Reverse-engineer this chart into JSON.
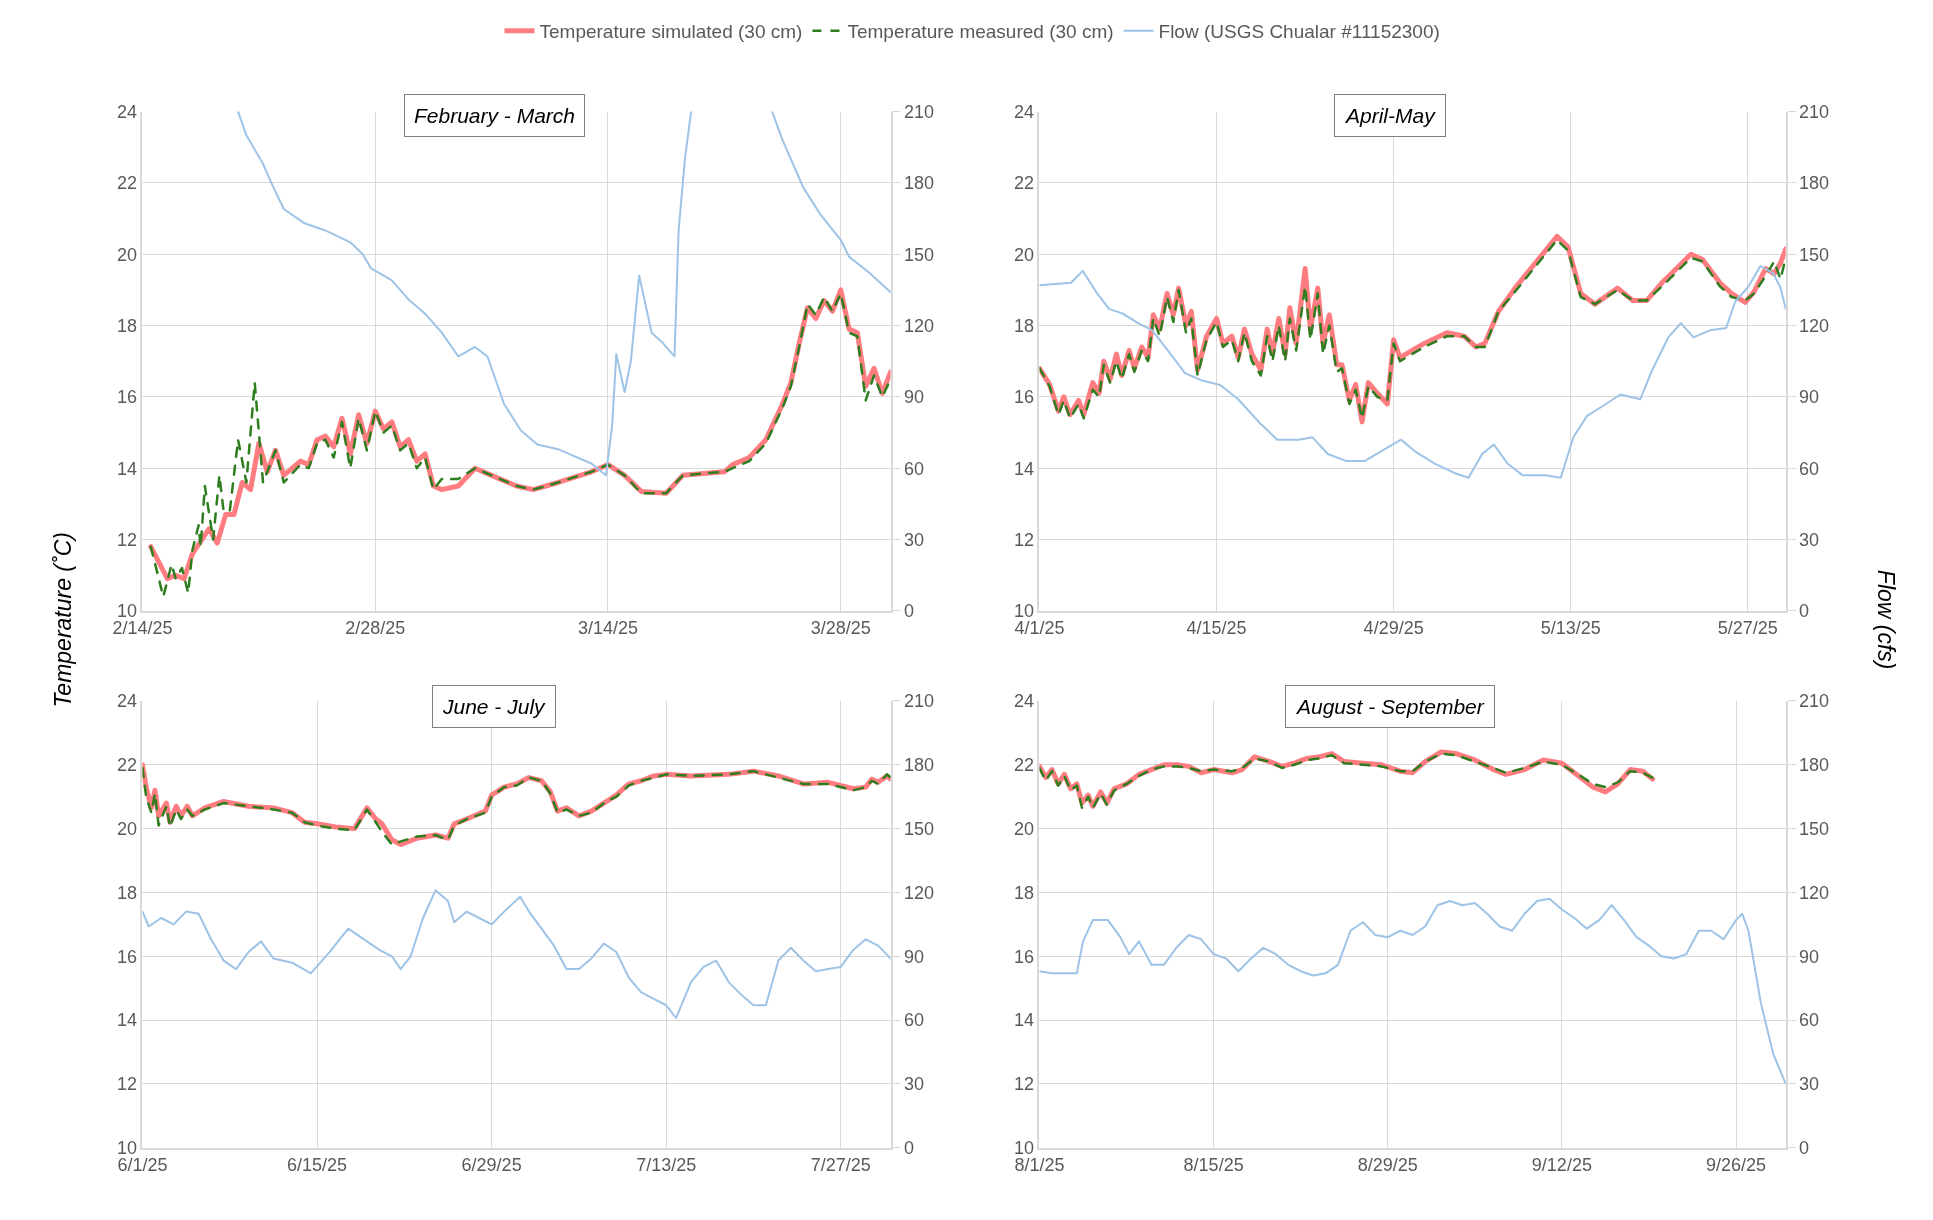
{
  "chart_data": [
    {
      "type": "line",
      "title": "February - March",
      "ylabel": "Temperature (˚C)",
      "y2label": "Flow (cfs)",
      "legend": "top",
      "grid": true,
      "xlim": [
        "--02-14",
        "--03-31"
      ],
      "xticks": [
        {
          "value": "--02-14",
          "label": "2/14/25"
        },
        {
          "value": "--02-28",
          "label": "2/28/25"
        },
        {
          "value": "--03-14",
          "label": "3/14/25"
        },
        {
          "value": "--03-28",
          "label": "3/28/25"
        }
      ],
      "ylim": [
        10,
        24
      ],
      "yticks": [
        10,
        12,
        14,
        16,
        18,
        20,
        22,
        24
      ],
      "y2lim": [
        0,
        210
      ],
      "y2ticks": [
        0,
        30,
        60,
        90,
        120,
        150,
        180,
        210
      ],
      "series": [
        {
          "name": "Temperature simulated (30 cm)",
          "color": "#ff7c80",
          "line_style": "solid",
          "x": [
            "--02-14T12:00",
            "--02-15T12:00",
            "--02-16",
            "--02-16T12:00",
            "--02-17",
            "--02-18",
            "--02-18T12:00",
            "--02-19",
            "--02-19T12:00",
            "--02-20",
            "--02-20T12:00",
            "--02-21",
            "--02-21T12:00",
            "--02-22",
            "--02-22T12:00",
            "--02-23T12:00",
            "--02-24",
            "--02-24T12:00",
            "--02-25",
            "--02-25T12:00",
            "--02-26",
            "--02-26T12:00",
            "--02-27",
            "--02-27T12:00",
            "--02-28",
            "--02-28T12:00",
            "--03-01",
            "--03-01T12:00",
            "--03-02",
            "--03-02T12:00",
            "--03-03",
            "--03-03T12:00",
            "--03-04",
            "--03-05",
            "--03-06",
            "--03-07",
            "--03-08T12:00",
            "--03-09T12:00",
            "--03-11",
            "--03-13",
            "--03-14",
            "--03-15",
            "--03-16",
            "--03-17T12:00",
            "--03-18T12:00",
            "--03-21",
            "--03-21T12:00",
            "--03-22T12:00",
            "--03-23T12:00",
            "--03-24T12:00",
            "--03-25",
            "--03-25T12:00",
            "--03-26",
            "--03-26T12:00",
            "--03-27",
            "--03-27T12:00",
            "--03-28",
            "--03-28T12:00",
            "--03-29",
            "--03-29T12:00",
            "--03-30",
            "--03-30T12:00",
            "--03-31"
          ],
          "values": [
            11.8,
            10.9,
            11.0,
            10.9,
            11.6,
            12.3,
            11.9,
            12.7,
            12.7,
            13.6,
            13.4,
            14.7,
            13.9,
            14.5,
            13.8,
            14.2,
            14.1,
            14.8,
            14.9,
            14.6,
            15.4,
            14.4,
            15.5,
            14.7,
            15.6,
            15.1,
            15.3,
            14.6,
            14.8,
            14.2,
            14.4,
            13.5,
            13.4,
            13.5,
            14.0,
            13.8,
            13.5,
            13.4,
            13.6,
            13.9,
            14.1,
            13.8,
            13.35,
            13.3,
            13.8,
            13.9,
            14.1,
            14.3,
            14.8,
            15.8,
            16.4,
            17.5,
            18.5,
            18.2,
            18.7,
            18.4,
            19.0,
            17.9,
            17.8,
            16.3,
            16.8,
            16.1,
            16.7
          ]
        },
        {
          "name": "Temperature measured (30 cm)",
          "color": "#2e7d1e",
          "line_style": "dashed",
          "x": [
            "--02-14T12:00",
            "--02-15T06:00",
            "--02-15T18:00",
            "--02-16",
            "--02-16T09:00",
            "--02-16T18:00",
            "--02-17",
            "--02-17T09:00",
            "--02-17T12:00",
            "--02-17T18:00",
            "--02-18T06:00",
            "--02-18T15:00",
            "--02-18T21:00",
            "--02-19T06:00",
            "--02-19T18:00",
            "--02-20T06:00",
            "--02-20T18:00",
            "--02-21T06:00",
            "--02-22",
            "--02-22T12:00",
            "--02-23T12:00",
            "--02-24",
            "--02-24T12:00",
            "--02-25",
            "--02-25T12:00",
            "--02-26",
            "--02-26T12:00",
            "--02-27",
            "--02-27T12:00",
            "--02-28",
            "--02-28T12:00",
            "--03-01",
            "--03-01T12:00",
            "--03-02",
            "--03-02T12:00",
            "--03-03",
            "--03-03T12:00",
            "--03-04",
            "--03-05",
            "--03-06",
            "--03-07",
            "--03-08T12:00",
            "--03-09T12:00",
            "--03-11",
            "--03-13",
            "--03-14",
            "--03-15",
            "--03-16",
            "--03-17T12:00",
            "--03-18T12:00",
            "--03-21",
            "--03-21T12:00",
            "--03-22T12:00",
            "--03-23T12:00",
            "--03-24T12:00",
            "--03-25",
            "--03-25T12:00",
            "--03-26",
            "--03-26T12:00",
            "--03-27",
            "--03-27T12:00",
            "--03-28",
            "--03-28T12:00",
            "--03-29",
            "--03-29T12:00",
            "--03-30",
            "--03-30T12:00",
            "--03-31"
          ],
          "values": [
            11.8,
            10.4,
            11.3,
            10.9,
            11.2,
            10.5,
            11.7,
            12.4,
            11.8,
            13.5,
            12.0,
            13.8,
            12.8,
            12.8,
            14.8,
            13.6,
            16.4,
            13.6,
            14.5,
            13.6,
            14.1,
            14.0,
            14.7,
            14.8,
            14.3,
            15.3,
            14.0,
            15.4,
            14.5,
            15.6,
            15.0,
            15.2,
            14.5,
            14.7,
            14.0,
            14.3,
            13.4,
            13.7,
            13.7,
            14.0,
            13.8,
            13.5,
            13.4,
            13.6,
            13.9,
            14.1,
            13.8,
            13.3,
            13.3,
            13.8,
            13.9,
            14.0,
            14.2,
            14.7,
            15.7,
            16.3,
            17.4,
            18.6,
            18.3,
            18.8,
            18.4,
            18.9,
            17.8,
            17.7,
            15.9,
            16.6,
            16.0,
            16.5
          ]
        },
        {
          "name": "Flow (USGS Chualar #11152300)",
          "color": "#9dc3e6",
          "line_style": "solid",
          "axis": "y2",
          "x": [
            "--02-19T18:00",
            "--02-20T06:00",
            "--02-21T06:00",
            "--02-21T18:00",
            "--02-22T12:00",
            "--02-23T18:00",
            "--02-25",
            "--02-26T12:00",
            "--02-27T06:00",
            "--02-27T18:00",
            "--03-01",
            "--03-02",
            "--03-03",
            "--03-04",
            "--03-05",
            "--03-06",
            "--03-06T18:00",
            "--03-07T18:00",
            "--03-08T18:00",
            "--03-09T18:00",
            "--03-11",
            "--03-12",
            "--03-13",
            "--03-13T21:00",
            "--03-14T06:00",
            "--03-14T12:00",
            "--03-15",
            "--03-15T09:00",
            "--03-15T21:00",
            "--03-16T15:00",
            "--03-17T06:00",
            "--03-18",
            "--03-18T06:00",
            "--03-18T15:00",
            "--03-19",
            "--03-21",
            "--03-23T21:00",
            "--03-24T12:00",
            "--03-25T18:00",
            "--03-26T18:00",
            "--03-28",
            "--03-28T12:00",
            "--03-29T18:00",
            "--03-31"
          ],
          "values": [
            210,
            200,
            188,
            180,
            169,
            163,
            160,
            155,
            150,
            144,
            139,
            131,
            125,
            117,
            107,
            111,
            107,
            87,
            76,
            70,
            68,
            65,
            62,
            57,
            78,
            108,
            92,
            105,
            141,
            117,
            113,
            107,
            160,
            190,
            210,
            null,
            210,
            198,
            178,
            167,
            156,
            149,
            142,
            134
          ]
        }
      ]
    },
    {
      "type": "line",
      "title": "April-May",
      "grid": true,
      "xlim": [
        "--04-01",
        "--05-30"
      ],
      "xticks": [
        {
          "value": "--04-01",
          "label": "4/1/25"
        },
        {
          "value": "--04-15",
          "label": "4/15/25"
        },
        {
          "value": "--04-29",
          "label": "4/29/25"
        },
        {
          "value": "--05-13",
          "label": "5/13/25"
        },
        {
          "value": "--05-27",
          "label": "5/27/25"
        }
      ],
      "ylim": [
        10,
        24
      ],
      "yticks": [
        10,
        12,
        14,
        16,
        18,
        20,
        22,
        24
      ],
      "y2lim": [
        0,
        210
      ],
      "y2ticks": [
        0,
        30,
        60,
        90,
        120,
        150,
        180,
        210
      ],
      "series": [
        {
          "color": "#ff7c80",
          "line_style": "solid",
          "x": [
            "--04-01",
            "--04-01T19:00",
            "--04-02T12:00",
            "--04-02T22:00",
            "--04-03T10:00",
            "--04-04T02:00",
            "--04-04T12:00",
            "--04-05T05:00",
            "--04-05T17:00",
            "--04-06T02:00",
            "--04-06T14:00",
            "--04-07T02:00",
            "--04-07T12:00",
            "--04-08T02:00",
            "--04-08T12:00",
            "--04-09T02:00",
            "--04-09T14:00",
            "--04-10",
            "--04-10T12:00",
            "--04-11T02:00",
            "--04-11T14:00",
            "--04-12",
            "--04-12T14:00",
            "--04-13",
            "--04-13T12:00",
            "--04-14T05:00",
            "--04-15",
            "--04-15T12:00",
            "--04-16T05:00",
            "--04-16T17:00",
            "--04-17T05:00",
            "--04-17T19:00",
            "--04-18T12:00",
            "--04-19",
            "--04-19T10:00",
            "--04-19T22:00",
            "--04-20T10:00",
            "--04-20T19:00",
            "--04-21T07:00",
            "--04-22",
            "--04-22T10:00",
            "--04-23",
            "--04-23T10:00",
            "--04-23T22:00",
            "--04-24T12:00",
            "--04-24T22:00",
            "--04-25T12:00",
            "--04-26",
            "--04-26T12:00",
            "--04-27",
            "--04-27T17:00",
            "--04-28T12:00",
            "--04-29",
            "--04-29T12:00",
            "--05-01T10:00",
            "--05-03T05:00",
            "--05-04T14:00",
            "--05-05T12:00",
            "--05-06T05:00",
            "--05-07T07:00",
            "--05-08T17:00",
            "--05-10T02:00",
            "--05-11T22:00",
            "--05-12T19:00",
            "--05-13T19:00",
            "--05-14T22:00",
            "--05-16T17:00",
            "--05-17T22:00",
            "--05-19",
            "--05-20T05:00",
            "--05-21T02:00",
            "--05-22T12:00",
            "--05-23T10:00",
            "--05-24T19:00",
            "--05-25T17:00",
            "--05-26T19:00",
            "--05-27T12:00",
            "--05-28T10:00",
            "--05-29T02:00",
            "--05-29T14:00",
            "--05-30"
          ],
          "values": [
            16.8,
            16.35,
            15.6,
            16.0,
            15.5,
            15.9,
            15.5,
            16.4,
            16.1,
            17.0,
            16.5,
            17.2,
            16.6,
            17.3,
            16.8,
            17.4,
            17.1,
            18.3,
            17.9,
            18.9,
            18.3,
            19.05,
            18.0,
            18.4,
            16.75,
            17.7,
            18.2,
            17.5,
            17.7,
            17.1,
            17.9,
            17.2,
            16.75,
            17.9,
            17.2,
            18.2,
            17.2,
            18.5,
            17.5,
            19.6,
            17.9,
            19.05,
            17.5,
            18.3,
            16.9,
            16.9,
            15.9,
            16.35,
            15.3,
            16.4,
            16.1,
            15.8,
            17.6,
            17.1,
            17.5,
            17.8,
            17.7,
            17.4,
            17.5,
            18.4,
            19.1,
            19.7,
            20.5,
            20.2,
            18.9,
            18.6,
            19.05,
            18.7,
            18.7,
            19.2,
            19.5,
            20.0,
            19.85,
            19.2,
            18.9,
            18.65,
            18.95,
            19.6,
            19.45,
            19.75,
            20.15
          ]
        },
        {
          "color": "#2e7d1e",
          "line_style": "dashed",
          "x": [
            "--04-01",
            "--04-01T19:00",
            "--04-02T12:00",
            "--04-02T22:00",
            "--04-03T10:00",
            "--04-04T02:00",
            "--04-04T12:00",
            "--04-05T05:00",
            "--04-05T17:00",
            "--04-06T02:00",
            "--04-06T14:00",
            "--04-07T02:00",
            "--04-07T12:00",
            "--04-08T02:00",
            "--04-08T12:00",
            "--04-09T02:00",
            "--04-09T14:00",
            "--04-10",
            "--04-10T12:00",
            "--04-11T02:00",
            "--04-11T14:00",
            "--04-12",
            "--04-12T14:00",
            "--04-13",
            "--04-13T12:00",
            "--04-14T05:00",
            "--04-15",
            "--04-15T12:00",
            "--04-16T05:00",
            "--04-16T17:00",
            "--04-17T05:00",
            "--04-17T19:00",
            "--04-18T12:00",
            "--04-19",
            "--04-19T10:00",
            "--04-19T22:00",
            "--04-20T10:00",
            "--04-20T19:00",
            "--04-21T07:00",
            "--04-22",
            "--04-22T10:00",
            "--04-23",
            "--04-23T10:00",
            "--04-23T22:00",
            "--04-24T12:00",
            "--04-24T22:00",
            "--04-25T12:00",
            "--04-26",
            "--04-26T12:00",
            "--04-27",
            "--04-27T17:00",
            "--04-28T12:00",
            "--04-29",
            "--04-29T12:00",
            "--05-01T10:00",
            "--05-03T05:00",
            "--05-04T14:00",
            "--05-05T12:00",
            "--05-06T05:00",
            "--05-07T07:00",
            "--05-08T17:00",
            "--05-10T02:00",
            "--05-11T22:00",
            "--05-12T19:00",
            "--05-13T19:00",
            "--05-14T22:00",
            "--05-16T17:00",
            "--05-17T22:00",
            "--05-19",
            "--05-20T05:00",
            "--05-21T02:00",
            "--05-22T12:00",
            "--05-23T10:00",
            "--05-24T19:00",
            "--05-25T17:00",
            "--05-26T19:00",
            "--05-27T12:00",
            "--05-28T10:00",
            "--05-29T02:00",
            "--05-29T14:00",
            "--05-30"
          ],
          "values": [
            16.8,
            16.3,
            15.5,
            15.9,
            15.4,
            15.8,
            15.4,
            16.2,
            16.0,
            16.9,
            16.4,
            17.0,
            16.5,
            17.2,
            16.7,
            17.3,
            17.0,
            18.2,
            17.7,
            18.8,
            18.1,
            19.0,
            17.8,
            18.2,
            16.6,
            17.6,
            18.1,
            17.4,
            17.6,
            17.0,
            17.8,
            17.0,
            16.6,
            17.7,
            17.0,
            18.0,
            17.0,
            18.2,
            17.3,
            19.1,
            17.6,
            18.9,
            17.2,
            18.0,
            16.7,
            16.8,
            15.8,
            16.2,
            15.4,
            16.3,
            16.0,
            15.9,
            17.5,
            17.0,
            17.4,
            17.7,
            17.7,
            17.4,
            17.4,
            18.4,
            19.0,
            19.6,
            20.4,
            20.1,
            18.8,
            18.6,
            19.0,
            18.7,
            18.7,
            19.1,
            19.4,
            19.9,
            19.8,
            19.1,
            18.8,
            18.7,
            18.9,
            19.4,
            19.8,
            19.3,
            19.9
          ]
        },
        {
          "color": "#9dc3e6",
          "line_style": "solid",
          "axis": "y2",
          "x": [
            "--04-01",
            "--04-03T12:00",
            "--04-04T10:00",
            "--04-05T12:00",
            "--04-06T12:00",
            "--04-07T14:00",
            "--04-08T19:00",
            "--04-09T22:00",
            "--04-11T02:00",
            "--04-12T12:00",
            "--04-13T19:00",
            "--04-15T07:00",
            "--04-16T17:00",
            "--04-18T10:00",
            "--04-19T19:00",
            "--04-21T12:00",
            "--04-22T14:00",
            "--04-23T19:00",
            "--04-25T07:00",
            "--04-26T17:00",
            "--04-28T07:00",
            "--04-29T14:00",
            "--04-30T17:00",
            "--05-02T05:00",
            "--05-03T19:00",
            "--05-04T22:00",
            "--05-06",
            "--05-06T22:00",
            "--05-08",
            "--05-09T05:00",
            "--05-11",
            "--05-12T05:00",
            "--05-13T05:00",
            "--05-14T07:00",
            "--05-15T19:00",
            "--05-16T22:00",
            "--05-18T12:00",
            "--05-19T10:00",
            "--05-20T17:00",
            "--05-21T17:00",
            "--05-22T17:00",
            "--05-24",
            "--05-25T07:00",
            "--05-26",
            "--05-27",
            "--05-28",
            "--05-29",
            "--05-29T14:00",
            "--05-30"
          ],
          "values": [
            137,
            138,
            143,
            134,
            127,
            125,
            121,
            118,
            110,
            100,
            97,
            95,
            89,
            79,
            72,
            72,
            73,
            66,
            63,
            63,
            68,
            72,
            67,
            62,
            58,
            56,
            66,
            70,
            62,
            57,
            57,
            56,
            73,
            82,
            87,
            91,
            89,
            101,
            115,
            121,
            115,
            118,
            119,
            130,
            136,
            145,
            142,
            136,
            127
          ]
        }
      ]
    },
    {
      "type": "line",
      "title": "June - July",
      "grid": true,
      "xlim": [
        "--06-01",
        "--07-31"
      ],
      "xticks": [
        {
          "value": "--06-01",
          "label": "6/1/25"
        },
        {
          "value": "--06-15",
          "label": "6/15/25"
        },
        {
          "value": "--06-29",
          "label": "6/29/25"
        },
        {
          "value": "--07-13",
          "label": "7/13/25"
        },
        {
          "value": "--07-27",
          "label": "7/27/25"
        }
      ],
      "ylim": [
        10,
        24
      ],
      "yticks": [
        10,
        12,
        14,
        16,
        18,
        20,
        22,
        24
      ],
      "y2lim": [
        0,
        210
      ],
      "y2ticks": [
        0,
        30,
        60,
        90,
        120,
        150,
        180,
        210
      ],
      "series": [
        {
          "color": "#ff7c80",
          "line_style": "solid",
          "x": [
            "--06-01",
            "--06-01T07:00",
            "--06-01T17:00",
            "--06-02",
            "--06-02T07:00",
            "--06-02T22:00",
            "--06-03T05:00",
            "--06-03T17:00",
            "--06-04T02:00",
            "--06-04T14:00",
            "--06-05",
            "--06-06",
            "--06-07T12:00",
            "--06-09T12:00",
            "--06-11T12:00",
            "--06-13",
            "--06-14",
            "--06-15",
            "--06-16T12:00",
            "--06-18",
            "--06-19",
            "--06-19T17:00",
            "--06-20T05:00",
            "--06-21",
            "--06-21T17:00",
            "--06-23",
            "--06-24T12:00",
            "--06-25T12:00",
            "--06-26",
            "--06-27",
            "--06-28T12:00",
            "--06-29",
            "--06-30",
            "--07-01",
            "--07-02",
            "--07-03",
            "--07-03T17:00",
            "--07-04T07:00",
            "--07-05",
            "--07-06",
            "--07-07",
            "--07-08",
            "--07-09",
            "--07-10",
            "--07-11",
            "--07-12",
            "--07-13",
            "--07-15",
            "--07-18",
            "--07-20",
            "--07-22",
            "--07-24",
            "--07-26",
            "--07-28",
            "--07-29",
            "--07-29T12:00",
            "--07-30",
            "--07-30T17:00",
            "--07-31"
          ],
          "values": [
            22.0,
            21.3,
            20.65,
            21.2,
            20.4,
            20.8,
            20.2,
            20.7,
            20.4,
            20.7,
            20.4,
            20.65,
            20.85,
            20.7,
            20.65,
            20.5,
            20.2,
            20.15,
            20.05,
            20.0,
            20.65,
            20.3,
            20.15,
            19.65,
            19.5,
            19.7,
            19.8,
            19.7,
            20.15,
            20.3,
            20.55,
            21.05,
            21.3,
            21.4,
            21.6,
            21.5,
            21.15,
            20.55,
            20.65,
            20.4,
            20.55,
            20.8,
            21.05,
            21.4,
            21.5,
            21.65,
            21.7,
            21.65,
            21.7,
            21.8,
            21.65,
            21.4,
            21.45,
            21.25,
            21.3,
            21.55,
            21.45,
            21.65,
            21.55
          ]
        },
        {
          "color": "#2e7d1e",
          "line_style": "dashed",
          "x": [
            "--06-01",
            "--06-01T07:00",
            "--06-01T17:00",
            "--06-02",
            "--06-02T07:00",
            "--06-02T22:00",
            "--06-03T05:00",
            "--06-03T17:00",
            "--06-04T02:00",
            "--06-04T14:00",
            "--06-05",
            "--06-06",
            "--06-07T12:00",
            "--06-09T12:00",
            "--06-11T12:00",
            "--06-13",
            "--06-14",
            "--06-15",
            "--06-16T12:00",
            "--06-18",
            "--06-19",
            "--06-19T17:00",
            "--06-20T05:00",
            "--06-21",
            "--06-21T17:00",
            "--06-23",
            "--06-24T12:00",
            "--06-25T12:00",
            "--06-26",
            "--06-27",
            "--06-28T12:00",
            "--06-29",
            "--06-30",
            "--07-01",
            "--07-02",
            "--07-03",
            "--07-03T17:00",
            "--07-04T07:00",
            "--07-05",
            "--07-06",
            "--07-07",
            "--07-08",
            "--07-09",
            "--07-10",
            "--07-11",
            "--07-12",
            "--07-13",
            "--07-15",
            "--07-18",
            "--07-20",
            "--07-22",
            "--07-24",
            "--07-26",
            "--07-28",
            "--07-29",
            "--07-29T12:00",
            "--07-30",
            "--07-30T17:00",
            "--07-31"
          ],
          "values": [
            21.9,
            21.0,
            20.5,
            21.1,
            20.1,
            20.7,
            20.05,
            20.6,
            20.3,
            20.6,
            20.4,
            20.6,
            20.8,
            20.7,
            20.6,
            20.5,
            20.2,
            20.1,
            20.0,
            19.95,
            20.6,
            20.2,
            19.9,
            19.5,
            19.6,
            19.75,
            19.8,
            19.65,
            20.1,
            20.3,
            20.5,
            21.0,
            21.3,
            21.35,
            21.6,
            21.5,
            21.1,
            20.5,
            20.6,
            20.4,
            20.5,
            20.8,
            21.0,
            21.35,
            21.5,
            21.6,
            21.7,
            21.65,
            21.7,
            21.8,
            21.6,
            21.4,
            21.4,
            21.2,
            21.3,
            21.5,
            21.4,
            21.7,
            21.6
          ]
        },
        {
          "color": "#9dc3e6",
          "line_style": "solid",
          "axis": "y2",
          "x": [
            "--06-01",
            "--06-01T12:00",
            "--06-02T12:00",
            "--06-03T12:00",
            "--06-04T12:00",
            "--06-05T12:00",
            "--06-06T12:00",
            "--06-07T12:00",
            "--06-08T12:00",
            "--06-09T12:00",
            "--06-10T12:00",
            "--06-11T12:00",
            "--06-13",
            "--06-14T12:00",
            "--06-16",
            "--06-17T12:00",
            "--06-18T12:00",
            "--06-20",
            "--06-21",
            "--06-21T17:00",
            "--06-22T12:00",
            "--06-23T12:00",
            "--06-24T12:00",
            "--06-25T12:00",
            "--06-26",
            "--06-27",
            "--06-28",
            "--06-29",
            "--06-30",
            "--07-01T07:00",
            "--07-02",
            "--07-03",
            "--07-04",
            "--07-05",
            "--07-06",
            "--07-07",
            "--07-08",
            "--07-09",
            "--07-10",
            "--07-11",
            "--07-12",
            "--07-13",
            "--07-13T19:00",
            "--07-15",
            "--07-16",
            "--07-17",
            "--07-18",
            "--07-19",
            "--07-20",
            "--07-21",
            "--07-22",
            "--07-23",
            "--07-24",
            "--07-25",
            "--07-26",
            "--07-27",
            "--07-28",
            "--07-29",
            "--07-30",
            "--07-31"
          ],
          "values": [
            111,
            104,
            108,
            105,
            111,
            110,
            98,
            88,
            84,
            92,
            97,
            89,
            87,
            82,
            92,
            103,
            99,
            93,
            90,
            84,
            90,
            108,
            121,
            116,
            106,
            111,
            108,
            105,
            111,
            118,
            111,
            103,
            95,
            84,
            84,
            89,
            96,
            92,
            80,
            73,
            70,
            67,
            61,
            78,
            85,
            88,
            78,
            72,
            67,
            67,
            88,
            94,
            88,
            83,
            84,
            85,
            93,
            98,
            95,
            89
          ]
        }
      ]
    },
    {
      "type": "line",
      "title": "August - September",
      "grid": true,
      "xlim": [
        "--08-01",
        "--09-30"
      ],
      "xticks": [
        {
          "value": "--08-01",
          "label": "8/1/25"
        },
        {
          "value": "--08-15",
          "label": "8/15/25"
        },
        {
          "value": "--08-29",
          "label": "8/29/25"
        },
        {
          "value": "--09-12",
          "label": "9/12/25"
        },
        {
          "value": "--09-26",
          "label": "9/26/25"
        }
      ],
      "ylim": [
        10,
        24
      ],
      "yticks": [
        10,
        12,
        14,
        16,
        18,
        20,
        22,
        24
      ],
      "y2lim": [
        0,
        210
      ],
      "y2ticks": [
        0,
        30,
        60,
        90,
        120,
        150,
        180,
        210
      ],
      "series": [
        {
          "color": "#ff7c80",
          "line_style": "solid",
          "x": [
            "--08-01",
            "--08-01T12:00",
            "--08-02",
            "--08-02T12:00",
            "--08-03",
            "--08-03T12:00",
            "--08-04",
            "--08-04T10:00",
            "--08-04T22:00",
            "--08-05T07:00",
            "--08-05T22:00",
            "--08-06T10:00",
            "--08-07",
            "--08-08",
            "--08-09",
            "--08-10",
            "--08-11",
            "--08-12",
            "--08-13",
            "--08-14",
            "--08-15",
            "--08-16T12:00",
            "--08-17T07:00",
            "--08-18T07:00",
            "--08-19T12:00",
            "--08-20T12:00",
            "--08-21T12:00",
            "--08-22T12:00",
            "--08-23T12:00",
            "--08-24T12:00",
            "--08-25T12:00",
            "--08-27",
            "--08-28T12:00",
            "--08-30",
            "--08-31",
            "--09-01",
            "--09-02T07:00",
            "--09-03T12:00",
            "--09-05",
            "--09-06T12:00",
            "--09-07T12:00",
            "--09-09",
            "--09-10T12:00",
            "--09-12",
            "--09-13T12:00",
            "--09-14T12:00",
            "--09-15T12:00",
            "--09-16T12:00",
            "--09-17T12:00",
            "--09-18T12:00",
            "--09-19T07:00"
          ],
          "values": [
            21.95,
            21.6,
            21.85,
            21.4,
            21.7,
            21.25,
            21.4,
            20.8,
            21.05,
            20.7,
            21.15,
            20.8,
            21.25,
            21.4,
            21.7,
            21.85,
            22.0,
            22.0,
            21.95,
            21.75,
            21.85,
            21.75,
            21.85,
            22.25,
            22.1,
            21.95,
            22.05,
            22.2,
            22.25,
            22.35,
            22.1,
            22.05,
            22.0,
            21.8,
            21.75,
            22.1,
            22.4,
            22.35,
            22.15,
            21.85,
            21.7,
            21.85,
            22.15,
            22.05,
            21.6,
            21.3,
            21.15,
            21.4,
            21.85,
            21.8,
            21.55
          ]
        },
        {
          "color": "#2e7d1e",
          "line_style": "dashed",
          "x": [
            "--08-01",
            "--08-01T12:00",
            "--08-02",
            "--08-02T12:00",
            "--08-03",
            "--08-03T12:00",
            "--08-04",
            "--08-04T10:00",
            "--08-04T22:00",
            "--08-05T07:00",
            "--08-05T22:00",
            "--08-06T10:00",
            "--08-07",
            "--08-08",
            "--08-09",
            "--08-10",
            "--08-11",
            "--08-12",
            "--08-13",
            "--08-14",
            "--08-15",
            "--08-16T12:00",
            "--08-17T07:00",
            "--08-18T07:00",
            "--08-19T12:00",
            "--08-20T12:00",
            "--08-21T12:00",
            "--08-22T12:00",
            "--08-23T12:00",
            "--08-24T12:00",
            "--08-25T12:00",
            "--08-27",
            "--08-28T12:00",
            "--08-30",
            "--08-31",
            "--09-01",
            "--09-02T07:00",
            "--09-03T12:00",
            "--09-05",
            "--09-06T12:00",
            "--09-07T12:00",
            "--09-09",
            "--09-10T12:00",
            "--09-12",
            "--09-13T12:00",
            "--09-14T12:00",
            "--09-15T12:00",
            "--09-16T12:00",
            "--09-17T12:00",
            "--09-18T12:00",
            "--09-19T07:00"
          ],
          "values": [
            21.9,
            21.5,
            21.8,
            21.35,
            21.65,
            21.2,
            21.35,
            20.65,
            21.0,
            20.65,
            21.1,
            20.75,
            21.2,
            21.4,
            21.65,
            21.85,
            21.95,
            21.95,
            21.9,
            21.8,
            21.85,
            21.8,
            21.9,
            22.2,
            22.1,
            21.9,
            22.0,
            22.15,
            22.2,
            22.3,
            22.05,
            22.0,
            21.95,
            21.8,
            21.8,
            22.1,
            22.35,
            22.3,
            22.1,
            21.9,
            21.75,
            21.9,
            22.1,
            22.0,
            21.65,
            21.4,
            21.3,
            21.45,
            21.8,
            21.75,
            21.6
          ]
        },
        {
          "color": "#9dc3e6",
          "line_style": "solid",
          "axis": "y2",
          "x": [
            "--08-01",
            "--08-02",
            "--08-03",
            "--08-04",
            "--08-04T12:00",
            "--08-05T07:00",
            "--08-06T12:00",
            "--08-07T12:00",
            "--08-08T05:00",
            "--08-09",
            "--08-10",
            "--08-11",
            "--08-12",
            "--08-13",
            "--08-14",
            "--08-15",
            "--08-16",
            "--08-17",
            "--08-18",
            "--08-19",
            "--08-20",
            "--08-21",
            "--08-22",
            "--08-23",
            "--08-24",
            "--08-25",
            "--08-26",
            "--08-27",
            "--08-28",
            "--08-29",
            "--08-30",
            "--08-31",
            "--09-01",
            "--09-02",
            "--09-03",
            "--09-04",
            "--09-05",
            "--09-06",
            "--09-07",
            "--09-08",
            "--09-09",
            "--09-10",
            "--09-11",
            "--09-12",
            "--09-13",
            "--09-14",
            "--09-15",
            "--09-16",
            "--09-17",
            "--09-18",
            "--09-19",
            "--09-20",
            "--09-21",
            "--09-22",
            "--09-23",
            "--09-24",
            "--09-25",
            "--09-26",
            "--09-26T12:00",
            "--09-27",
            "--09-28",
            "--09-29",
            "--09-30"
          ],
          "values": [
            83,
            82,
            82,
            82,
            97,
            107,
            107,
            99,
            91,
            97,
            86,
            86,
            94,
            100,
            98,
            91,
            89,
            83,
            89,
            94,
            91,
            86,
            83,
            81,
            82,
            86,
            102,
            106,
            100,
            99,
            102,
            100,
            104,
            114,
            116,
            114,
            115,
            110,
            104,
            102,
            110,
            116,
            117,
            112,
            108,
            103,
            107,
            114,
            107,
            99,
            95,
            90,
            89,
            91,
            102,
            102,
            98,
            107,
            110,
            102,
            68,
            44,
            30
          ]
        }
      ]
    }
  ]
}
